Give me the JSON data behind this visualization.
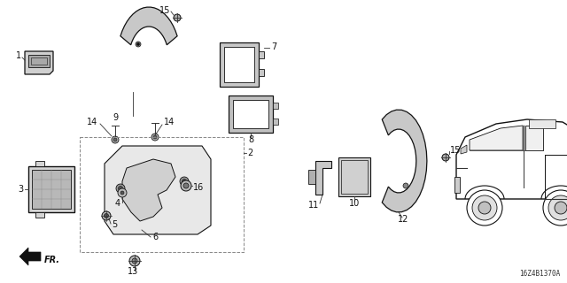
{
  "bg_color": "#ffffff",
  "diagram_id": "16Z4B1370A",
  "lc": "#333333",
  "lc_dark": "#111111",
  "fs": 7,
  "figw": 6.4,
  "figh": 3.2,
  "dpi": 100
}
